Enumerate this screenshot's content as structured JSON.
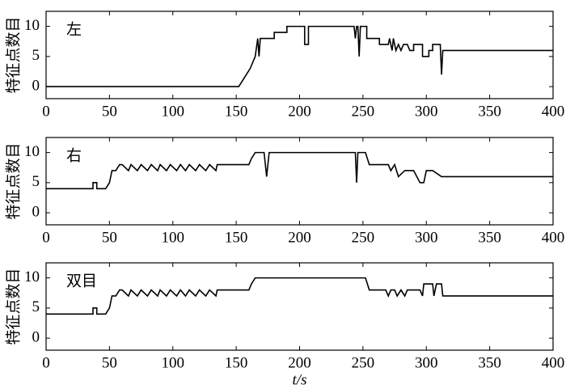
{
  "chart_data": [
    {
      "type": "line",
      "annotation": "左",
      "ylabel": "特征点数目",
      "x": [
        0,
        152,
        155,
        158,
        161,
        163,
        165,
        167,
        168,
        169,
        170,
        180,
        180,
        190,
        190,
        204,
        204,
        207,
        207,
        243,
        244,
        245,
        246,
        247,
        248,
        249,
        250,
        253,
        253,
        263,
        263,
        270,
        271,
        273,
        274,
        276,
        278,
        280,
        282,
        285,
        287,
        290,
        290,
        297,
        297,
        302,
        302,
        305,
        305,
        311,
        312,
        313,
        400
      ],
      "values": [
        0,
        0,
        1,
        2,
        3,
        4,
        5,
        8,
        5,
        8,
        8,
        8,
        9,
        9,
        10,
        10,
        7,
        7,
        10,
        10,
        8,
        10,
        10,
        5,
        10,
        10,
        10,
        10,
        8,
        8,
        7,
        7,
        8,
        6,
        8,
        6,
        7,
        6,
        7,
        7,
        6,
        6,
        7,
        7,
        5,
        5,
        6,
        6,
        7,
        7,
        2,
        6,
        6
      ],
      "color": "#000000",
      "xlim": [
        0,
        400
      ],
      "xticks": [
        0,
        50,
        100,
        150,
        200,
        250,
        300,
        350,
        400
      ],
      "ylim": [
        -2,
        12.5
      ],
      "yticks": [
        0,
        5,
        10
      ]
    },
    {
      "type": "line",
      "annotation": "右",
      "ylabel": "特征点数目",
      "x": [
        0,
        37,
        37,
        40,
        40,
        47,
        50,
        52,
        55,
        58,
        60,
        65,
        67,
        72,
        75,
        80,
        83,
        88,
        90,
        95,
        98,
        103,
        106,
        110,
        113,
        118,
        121,
        126,
        129,
        134,
        135,
        160,
        162,
        165,
        172,
        174,
        176,
        244,
        245,
        246,
        247,
        252,
        255,
        270,
        272,
        275,
        278,
        283,
        290,
        295,
        298,
        300,
        305,
        312,
        400
      ],
      "values": [
        4,
        4,
        5,
        5,
        4,
        4,
        5,
        7,
        7,
        8,
        8,
        7,
        8,
        7,
        8,
        7,
        8,
        7,
        8,
        7,
        8,
        7,
        8,
        7,
        8,
        7,
        8,
        7,
        8,
        7,
        8,
        8,
        9,
        10,
        10,
        6,
        10,
        10,
        5,
        10,
        10,
        10,
        8,
        8,
        7,
        8,
        6,
        7,
        7,
        5,
        5,
        7,
        7,
        6,
        6
      ],
      "color": "#000000",
      "xlim": [
        0,
        400
      ],
      "xticks": [
        0,
        50,
        100,
        150,
        200,
        250,
        300,
        350,
        400
      ],
      "ylim": [
        -2,
        12.5
      ],
      "yticks": [
        0,
        5,
        10
      ]
    },
    {
      "type": "line",
      "annotation": "双目",
      "ylabel": "特征点数目",
      "xlabel": "t/s",
      "x": [
        0,
        37,
        37,
        40,
        40,
        47,
        50,
        52,
        55,
        58,
        60,
        65,
        67,
        72,
        75,
        80,
        83,
        88,
        90,
        95,
        98,
        103,
        106,
        110,
        113,
        118,
        121,
        126,
        129,
        134,
        135,
        160,
        162,
        165,
        250,
        252,
        255,
        268,
        270,
        272,
        275,
        277,
        280,
        283,
        285,
        295,
        297,
        298,
        305,
        306,
        308,
        310,
        312,
        313,
        400
      ],
      "values": [
        4,
        4,
        5,
        5,
        4,
        4,
        5,
        7,
        7,
        8,
        8,
        7,
        8,
        7,
        8,
        7,
        8,
        7,
        8,
        7,
        8,
        7,
        8,
        7,
        8,
        7,
        8,
        7,
        8,
        7,
        8,
        8,
        9,
        10,
        10,
        10,
        8,
        8,
        7,
        8,
        8,
        7,
        8,
        7,
        8,
        8,
        7,
        9,
        9,
        7,
        9,
        9,
        9,
        7,
        7
      ],
      "color": "#000000",
      "xlim": [
        0,
        400
      ],
      "xticks": [
        0,
        50,
        100,
        150,
        200,
        250,
        300,
        350,
        400
      ],
      "ylim": [
        -2,
        12.5
      ],
      "yticks": [
        0,
        5,
        10
      ]
    }
  ]
}
